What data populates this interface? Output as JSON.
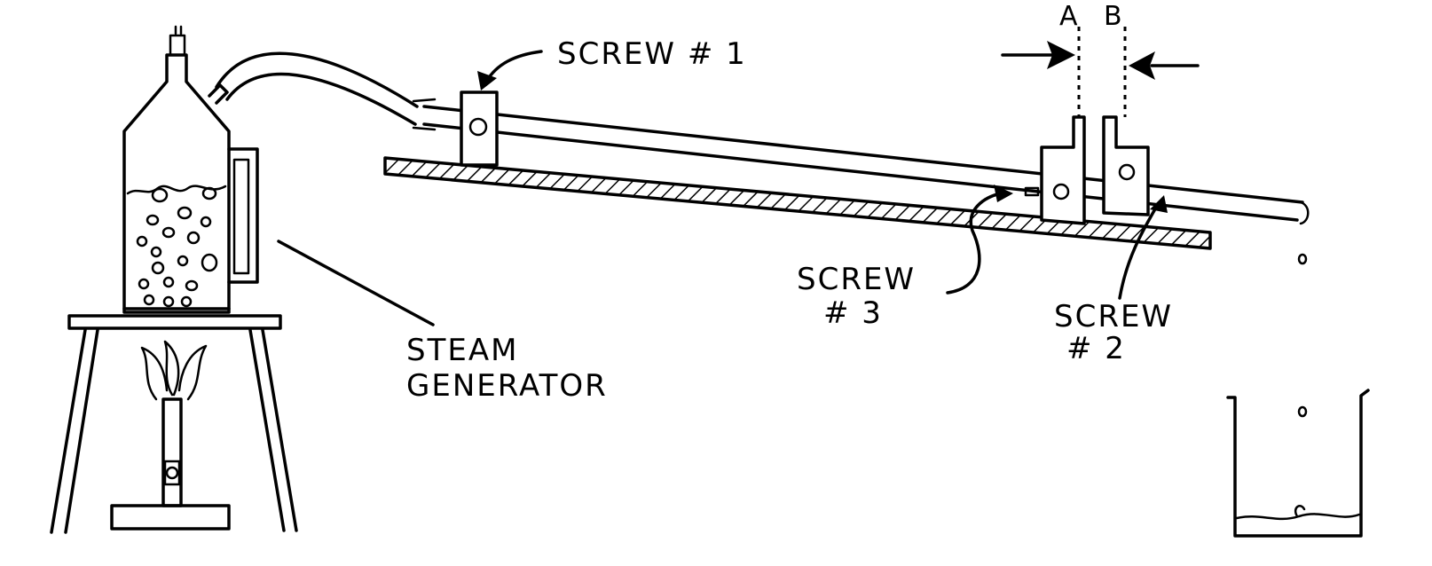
{
  "labels": {
    "screw1": "SCREW # 1",
    "screw3_line1": "SCREW",
    "screw3_line2": "# 3",
    "screw2_line1": "SCREW",
    "screw2_line2": "# 2",
    "steam_line1": "STEAM",
    "steam_line2": "GENERATOR",
    "marker_a": "A",
    "marker_b": "B"
  }
}
